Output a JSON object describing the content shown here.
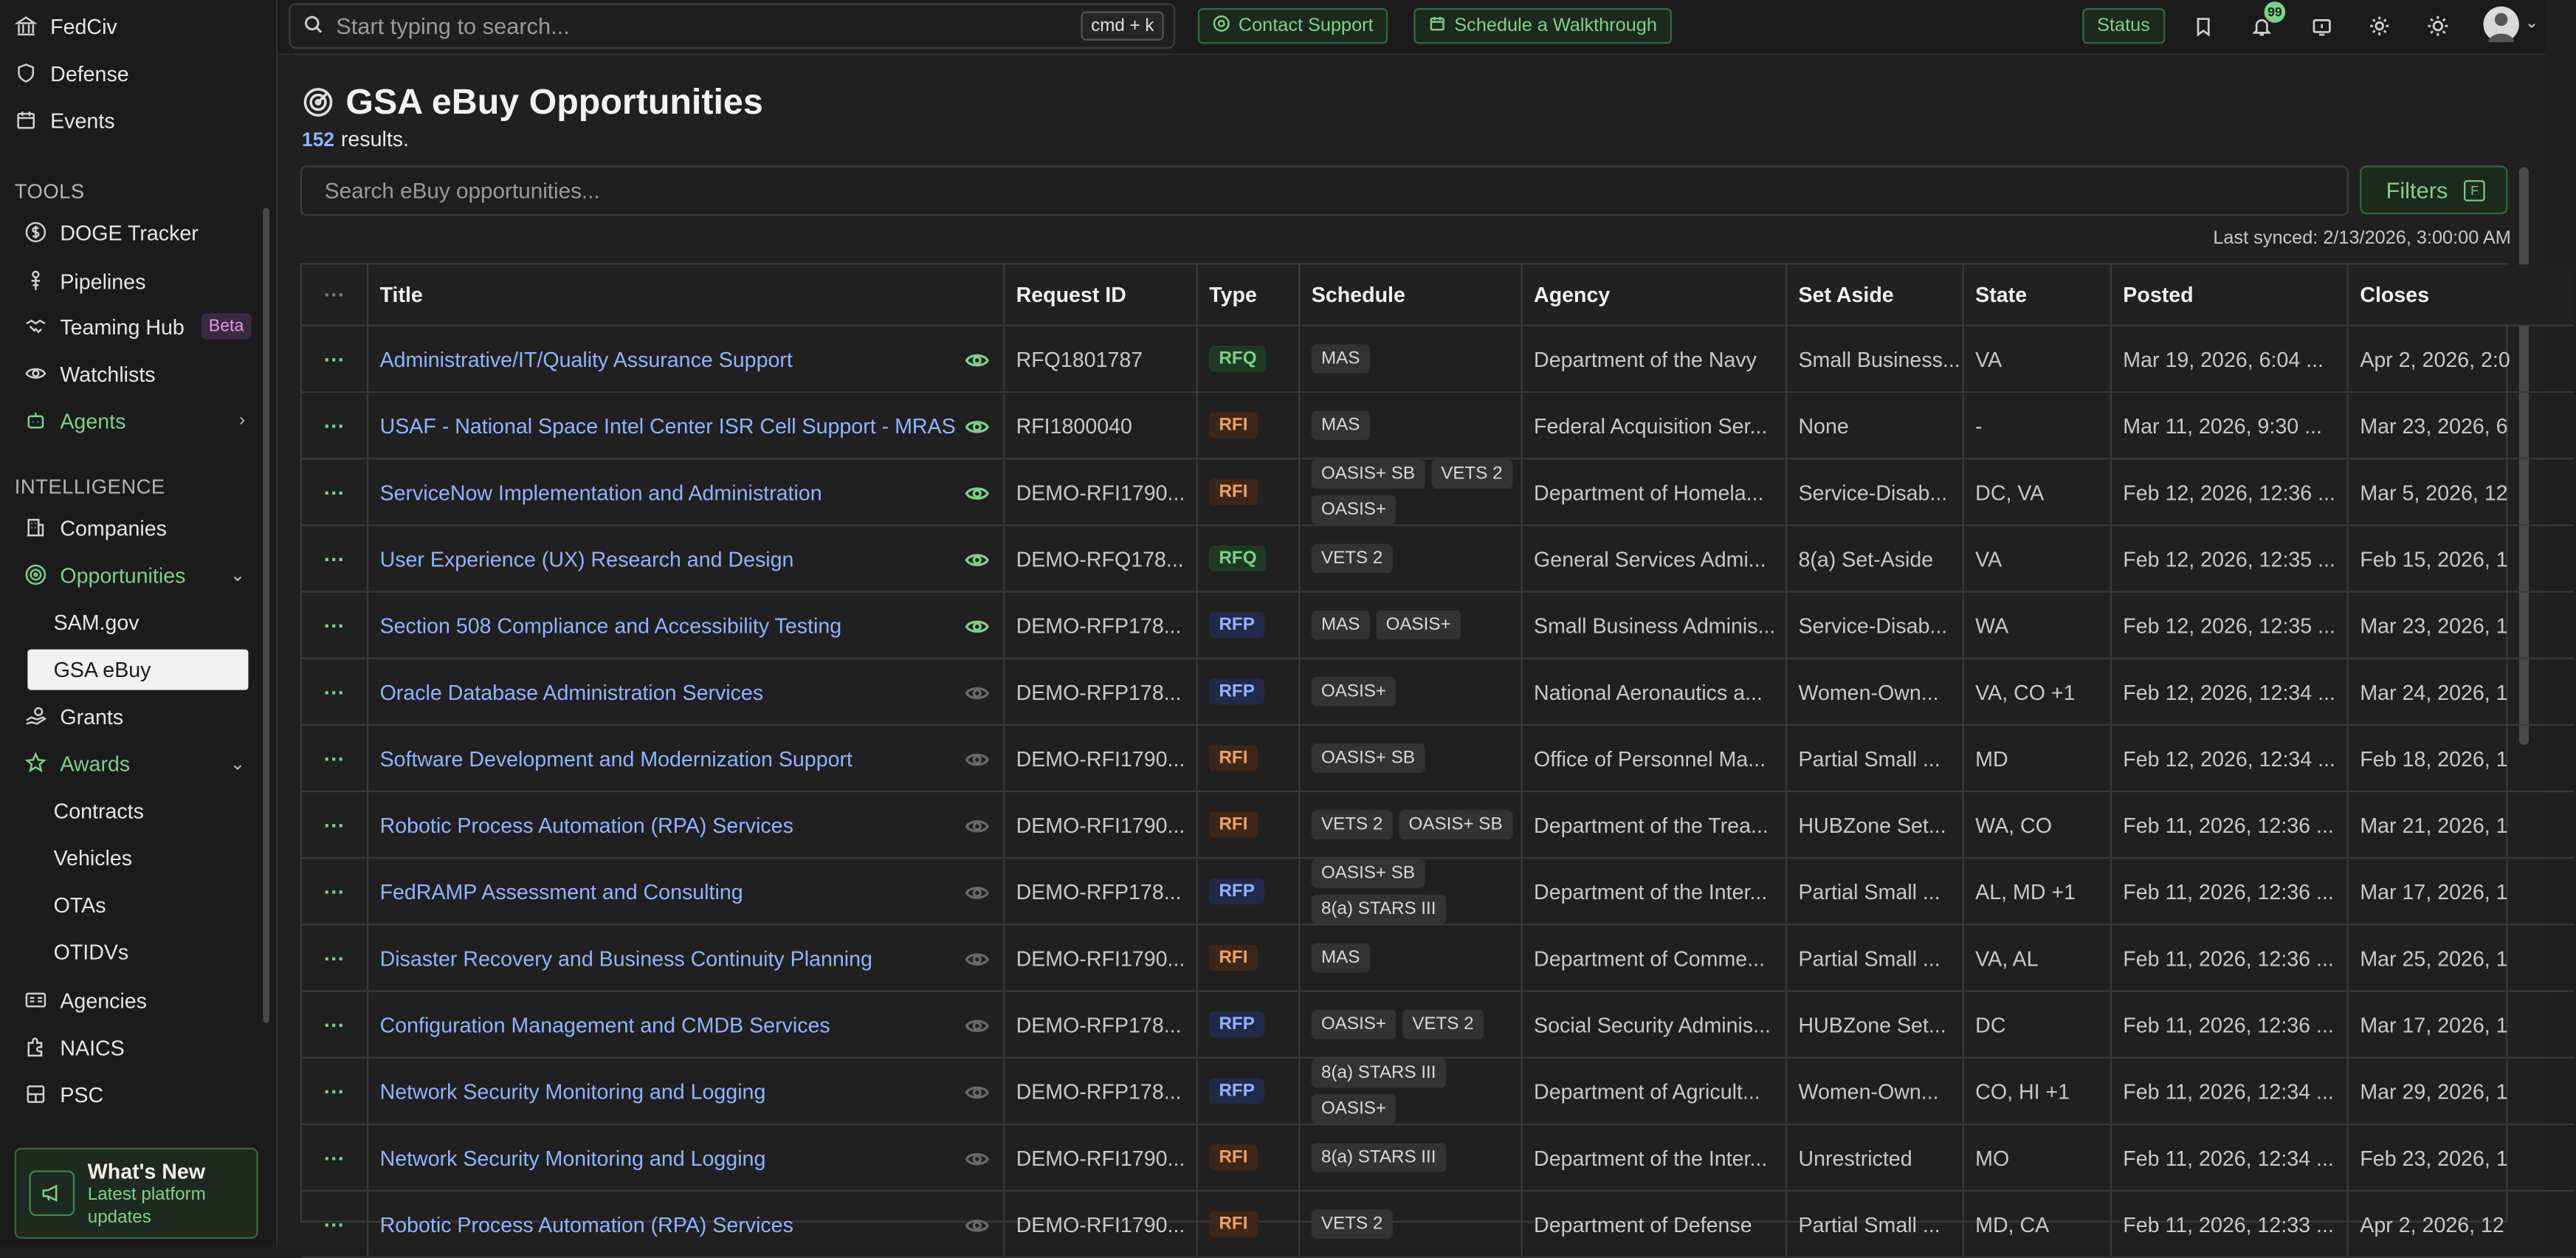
{
  "sidebar": {
    "top_items": [
      "FedCiv",
      "Defense",
      "Events"
    ],
    "tools_label": "TOOLS",
    "tools": [
      "DOGE Tracker",
      "Pipelines",
      "Teaming Hub",
      "Watchlists",
      "Agents"
    ],
    "beta_label": "Beta",
    "intel_label": "INTELLIGENCE",
    "intel": [
      "Companies",
      "Opportunities",
      "SAM.gov",
      "GSA eBuy",
      "Grants",
      "Awards",
      "Contracts",
      "Vehicles",
      "OTAs",
      "OTIDVs",
      "Agencies",
      "NAICS",
      "PSC"
    ],
    "whats_new_title": "What's New",
    "whats_new_sub": "Latest platform updates"
  },
  "topbar": {
    "search_placeholder": "Start typing to search...",
    "shortcut": "cmd + k",
    "contact_support": "Contact Support",
    "schedule_walkthrough": "Schedule a Walkthrough",
    "status": "Status",
    "notifications": "99"
  },
  "page": {
    "title": "GSA eBuy Opportunities",
    "result_count": "152",
    "results_label": "results.",
    "search_placeholder": "Search eBuy opportunities...",
    "filters_label": "Filters",
    "filters_key": "F",
    "last_synced": "Last synced: 2/13/2026, 3:00:00 AM"
  },
  "table": {
    "menu_header": "···",
    "columns": [
      "Title",
      "Request ID",
      "Type",
      "Schedule",
      "Agency",
      "Set Aside",
      "State",
      "Posted",
      "Closes"
    ],
    "rows": [
      {
        "title": "Administrative/IT/Quality Assurance Support",
        "watched": true,
        "request_id": "RFQ1801787",
        "type": "RFQ",
        "schedule": [
          "MAS"
        ],
        "agency": "Department of the Navy",
        "set_aside": "Small Business...",
        "state": "VA",
        "posted": "Mar 19, 2026, 6:04 ...",
        "closes": "Apr 2, 2026, 2:0"
      },
      {
        "title": "USAF - National Space Intel Center ISR Cell Support - MRAS",
        "watched": true,
        "request_id": "RFI1800040",
        "type": "RFI",
        "schedule": [
          "MAS"
        ],
        "agency": "Federal Acquisition Ser...",
        "set_aside": "None",
        "state": "-",
        "posted": "Mar 11, 2026, 9:30 ...",
        "closes": "Mar 23, 2026, 6"
      },
      {
        "title": "ServiceNow Implementation and Administration",
        "watched": true,
        "request_id": "DEMO-RFI1790...",
        "type": "RFI",
        "schedule": [
          "OASIS+ SB",
          "VETS 2",
          "OASIS+"
        ],
        "agency": "Department of Homela...",
        "set_aside": "Service-Disab...",
        "state": "DC, VA",
        "posted": "Feb 12, 2026, 12:36 ...",
        "closes": "Mar 5, 2026, 12"
      },
      {
        "title": "User Experience (UX) Research and Design",
        "watched": true,
        "request_id": "DEMO-RFQ178...",
        "type": "RFQ",
        "schedule": [
          "VETS 2"
        ],
        "agency": "General Services Admi...",
        "set_aside": "8(a) Set-Aside",
        "state": "VA",
        "posted": "Feb 12, 2026, 12:35 ...",
        "closes": "Feb 15, 2026, 1"
      },
      {
        "title": "Section 508 Compliance and Accessibility Testing",
        "watched": true,
        "request_id": "DEMO-RFP178...",
        "type": "RFP",
        "schedule": [
          "MAS",
          "OASIS+"
        ],
        "agency": "Small Business Adminis...",
        "set_aside": "Service-Disab...",
        "state": "WA",
        "posted": "Feb 12, 2026, 12:35 ...",
        "closes": "Mar 23, 2026, 1"
      },
      {
        "title": "Oracle Database Administration Services",
        "watched": false,
        "request_id": "DEMO-RFP178...",
        "type": "RFP",
        "schedule": [
          "OASIS+"
        ],
        "agency": "National Aeronautics a...",
        "set_aside": "Women-Own...",
        "state": "VA, CO +1",
        "posted": "Feb 12, 2026, 12:34 ...",
        "closes": "Mar 24, 2026, 1"
      },
      {
        "title": "Software Development and Modernization Support",
        "watched": false,
        "request_id": "DEMO-RFI1790...",
        "type": "RFI",
        "schedule": [
          "OASIS+ SB"
        ],
        "agency": "Office of Personnel Ma...",
        "set_aside": "Partial Small ...",
        "state": "MD",
        "posted": "Feb 12, 2026, 12:34 ...",
        "closes": "Feb 18, 2026, 1"
      },
      {
        "title": "Robotic Process Automation (RPA) Services",
        "watched": false,
        "request_id": "DEMO-RFI1790...",
        "type": "RFI",
        "schedule": [
          "VETS 2",
          "OASIS+ SB"
        ],
        "agency": "Department of the Trea...",
        "set_aside": "HUBZone Set...",
        "state": "WA, CO",
        "posted": "Feb 11, 2026, 12:36 ...",
        "closes": "Mar 21, 2026, 1"
      },
      {
        "title": "FedRAMP Assessment and Consulting",
        "watched": false,
        "request_id": "DEMO-RFP178...",
        "type": "RFP",
        "schedule": [
          "OASIS+ SB",
          "8(a) STARS III"
        ],
        "agency": "Department of the Inter...",
        "set_aside": "Partial Small ...",
        "state": "AL, MD +1",
        "posted": "Feb 11, 2026, 12:36 ...",
        "closes": "Mar 17, 2026, 1"
      },
      {
        "title": "Disaster Recovery and Business Continuity Planning",
        "watched": false,
        "request_id": "DEMO-RFI1790...",
        "type": "RFI",
        "schedule": [
          "MAS"
        ],
        "agency": "Department of Comme...",
        "set_aside": "Partial Small ...",
        "state": "VA, AL",
        "posted": "Feb 11, 2026, 12:36 ...",
        "closes": "Mar 25, 2026, 1"
      },
      {
        "title": "Configuration Management and CMDB Services",
        "watched": false,
        "request_id": "DEMO-RFP178...",
        "type": "RFP",
        "schedule": [
          "OASIS+",
          "VETS 2"
        ],
        "agency": "Social Security Adminis...",
        "set_aside": "HUBZone Set...",
        "state": "DC",
        "posted": "Feb 11, 2026, 12:36 ...",
        "closes": "Mar 17, 2026, 1"
      },
      {
        "title": "Network Security Monitoring and Logging",
        "watched": false,
        "request_id": "DEMO-RFP178...",
        "type": "RFP",
        "schedule": [
          "8(a) STARS III",
          "OASIS+"
        ],
        "agency": "Department of Agricult...",
        "set_aside": "Women-Own...",
        "state": "CO, HI +1",
        "posted": "Feb 11, 2026, 12:34 ...",
        "closes": "Mar 29, 2026, 1"
      },
      {
        "title": "Network Security Monitoring and Logging",
        "watched": false,
        "request_id": "DEMO-RFI1790...",
        "type": "RFI",
        "schedule": [
          "8(a) STARS III"
        ],
        "agency": "Department of the Inter...",
        "set_aside": "Unrestricted",
        "state": "MO",
        "posted": "Feb 11, 2026, 12:34 ...",
        "closes": "Feb 23, 2026, 1"
      },
      {
        "title": "Robotic Process Automation (RPA) Services",
        "watched": false,
        "request_id": "DEMO-RFI1790...",
        "type": "RFI",
        "schedule": [
          "VETS 2"
        ],
        "agency": "Department of Defense",
        "set_aside": "Partial Small ...",
        "state": "MD, CA",
        "posted": "Feb 11, 2026, 12:33 ...",
        "closes": "Apr 2, 2026, 12"
      }
    ]
  },
  "colors": {
    "accent_green": "#7ed08a",
    "link_blue": "#8fb4ff",
    "rfi_orange": "#f0a060"
  }
}
